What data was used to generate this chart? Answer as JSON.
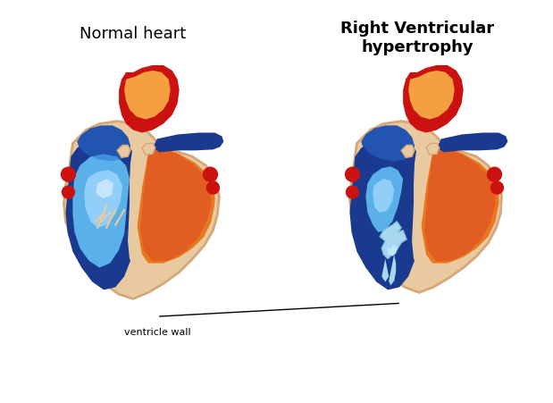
{
  "title_left": "Normal heart",
  "title_right": "Right Ventricular\nhypertrophy",
  "label_annotation": "ventricle wall",
  "bg_color": "#ffffff",
  "skin_color": "#e8c9a0",
  "skin_border": "#d4a878",
  "blue_dark": "#1a3a8f",
  "blue_mid": "#2a6fd4",
  "blue_light": "#5ab0e8",
  "blue_bright": "#aaddff",
  "red_dark": "#cc1111",
  "red_mid": "#dd4422",
  "orange": "#e87820",
  "orange_light": "#f5a040",
  "white": "#ffffff",
  "fig_width": 6.19,
  "fig_height": 4.51
}
